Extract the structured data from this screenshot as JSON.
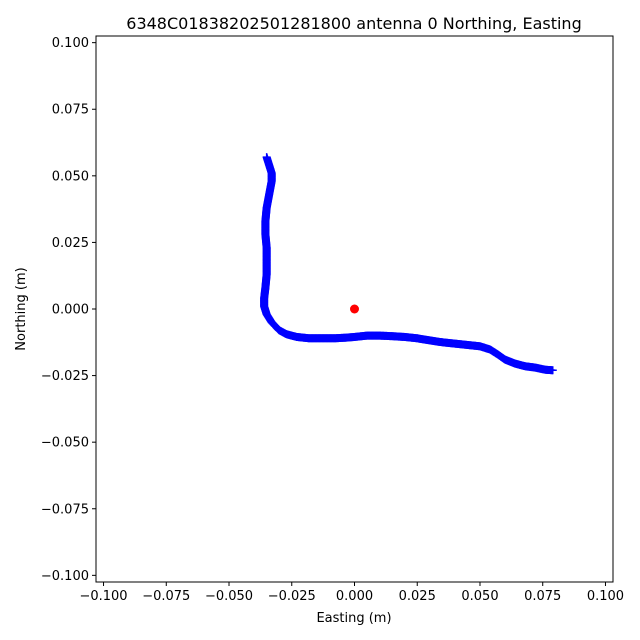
{
  "chart_data": {
    "type": "scatter",
    "title": "6348C01838202501281800 antenna 0 Northing, Easting",
    "xlabel": "Easting (m)",
    "ylabel": "Northing (m)",
    "xlim": [
      -0.103,
      0.103
    ],
    "ylim": [
      -0.1025,
      0.1025
    ],
    "xticks": [
      -0.1,
      -0.075,
      -0.05,
      -0.025,
      0.0,
      0.025,
      0.05,
      0.075,
      0.1
    ],
    "yticks": [
      -0.1,
      -0.075,
      -0.05,
      -0.025,
      0.0,
      0.025,
      0.05,
      0.075,
      0.1
    ],
    "xtick_labels": [
      "−0.100",
      "−0.075",
      "−0.050",
      "−0.025",
      "0.000",
      "0.025",
      "0.050",
      "0.075",
      "0.100"
    ],
    "ytick_labels": [
      "−0.100",
      "−0.075",
      "−0.050",
      "−0.025",
      "0.000",
      "0.025",
      "0.050",
      "0.075",
      "0.100"
    ],
    "grid": false,
    "series": [
      {
        "marker": "+",
        "color": "#0000ff",
        "points": [
          [
            -0.035,
            0.057
          ],
          [
            -0.034,
            0.054
          ],
          [
            -0.033,
            0.051
          ],
          [
            -0.033,
            0.048
          ],
          [
            -0.034,
            0.043
          ],
          [
            -0.035,
            0.038
          ],
          [
            -0.0355,
            0.033
          ],
          [
            -0.0355,
            0.028
          ],
          [
            -0.035,
            0.023
          ],
          [
            -0.035,
            0.018
          ],
          [
            -0.035,
            0.013
          ],
          [
            -0.0355,
            0.008
          ],
          [
            -0.036,
            0.004
          ],
          [
            -0.036,
            0.001
          ],
          [
            -0.035,
            -0.002
          ],
          [
            -0.033,
            -0.005
          ],
          [
            -0.03,
            -0.008
          ],
          [
            -0.027,
            -0.0095
          ],
          [
            -0.023,
            -0.0105
          ],
          [
            -0.018,
            -0.011
          ],
          [
            -0.013,
            -0.011
          ],
          [
            -0.008,
            -0.011
          ],
          [
            -0.004,
            -0.0108
          ],
          [
            0.0,
            -0.0105
          ],
          [
            0.005,
            -0.01
          ],
          [
            0.01,
            -0.01
          ],
          [
            0.015,
            -0.0102
          ],
          [
            0.02,
            -0.0105
          ],
          [
            0.025,
            -0.011
          ],
          [
            0.03,
            -0.0118
          ],
          [
            0.035,
            -0.0125
          ],
          [
            0.04,
            -0.013
          ],
          [
            0.045,
            -0.0135
          ],
          [
            0.05,
            -0.014
          ],
          [
            0.054,
            -0.0152
          ],
          [
            0.057,
            -0.017
          ],
          [
            0.06,
            -0.019
          ],
          [
            0.064,
            -0.0205
          ],
          [
            0.068,
            -0.0215
          ],
          [
            0.072,
            -0.022
          ],
          [
            0.076,
            -0.0228
          ],
          [
            0.079,
            -0.023
          ]
        ]
      },
      {
        "marker": "o",
        "color": "#ff0000",
        "points": [
          [
            0.0,
            0.0
          ]
        ]
      }
    ]
  }
}
